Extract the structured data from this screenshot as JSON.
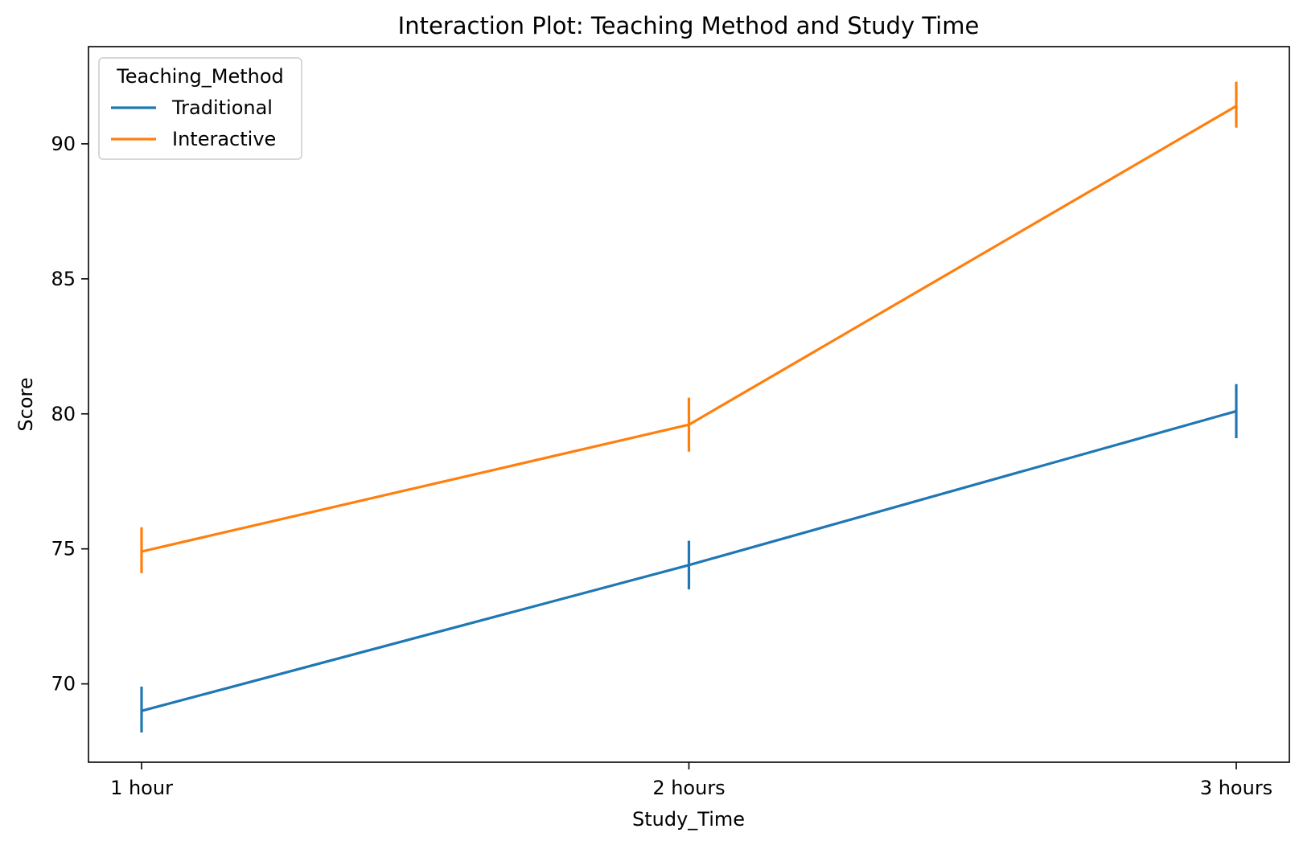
{
  "chart_data": {
    "type": "line",
    "title": "Interaction Plot: Teaching Method and Study Time",
    "xlabel": "Study_Time",
    "ylabel": "Score",
    "categories": [
      "1 hour",
      "2 hours",
      "3 hours"
    ],
    "ylim": [
      67.1,
      93.6
    ],
    "yticks": [
      70,
      75,
      80,
      85,
      90
    ],
    "grid": false,
    "legend": {
      "title": "Teaching_Method",
      "placement": "top-left"
    },
    "series": [
      {
        "name": "Traditional",
        "color": "#1f77b4",
        "values": [
          69.0,
          74.4,
          80.1
        ],
        "error_low": [
          68.2,
          73.5,
          79.1
        ],
        "error_high": [
          69.9,
          75.3,
          81.1
        ]
      },
      {
        "name": "Interactive",
        "color": "#ff7f0e",
        "values": [
          74.9,
          79.6,
          91.4
        ],
        "error_low": [
          74.1,
          78.6,
          90.6
        ],
        "error_high": [
          75.8,
          80.6,
          92.3
        ]
      }
    ]
  }
}
